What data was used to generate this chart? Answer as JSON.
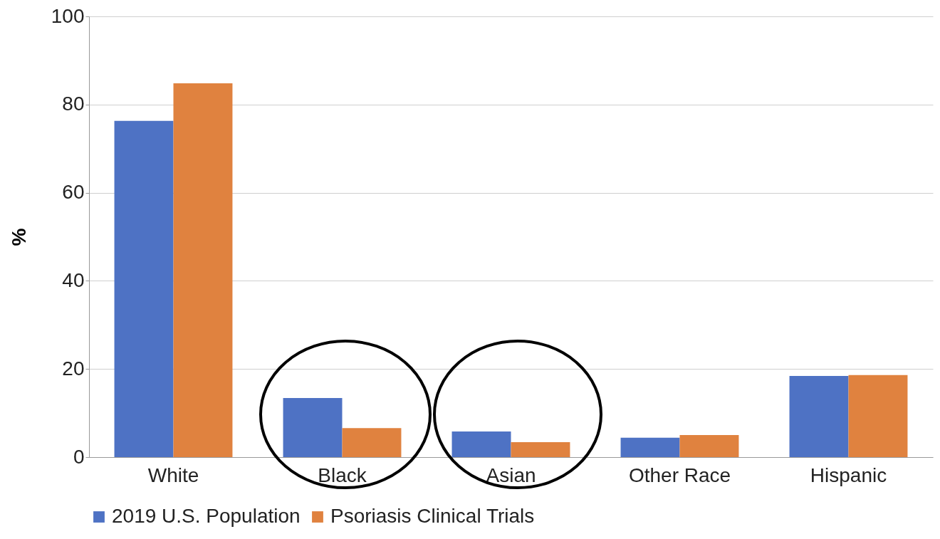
{
  "chart_data": {
    "type": "bar",
    "ylabel": "%",
    "categories": [
      "White",
      "Black",
      "Asian",
      "Other Race",
      "Hispanic"
    ],
    "series": [
      {
        "name": "2019 U.S. Population",
        "color": "#4e72c4",
        "values": [
          76.3,
          13.4,
          5.8,
          4.4,
          18.4
        ]
      },
      {
        "name": "Psoriasis Clinical Trials",
        "color": "#e0823f",
        "values": [
          84.8,
          6.6,
          3.4,
          5.0,
          18.6
        ]
      }
    ],
    "ylim": [
      0,
      100
    ],
    "yticks": [
      0,
      20,
      40,
      60,
      80,
      100
    ],
    "grid": "y",
    "legend": "bottom"
  }
}
